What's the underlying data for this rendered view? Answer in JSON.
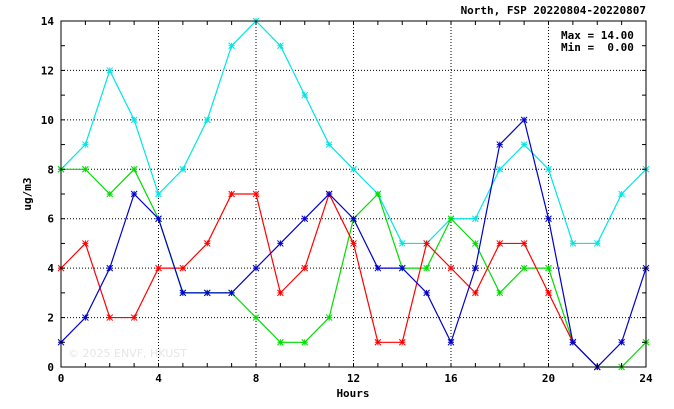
{
  "chart_data": {
    "type": "line",
    "title": "North, FSP 20220804-20220807",
    "xlabel": "Hours",
    "ylabel": "ug/m3",
    "xlim": [
      0,
      24
    ],
    "ylim": [
      0,
      14
    ],
    "x_ticks": [
      0,
      4,
      8,
      12,
      16,
      20,
      24
    ],
    "y_ticks": [
      0,
      2,
      4,
      6,
      8,
      10,
      12,
      14
    ],
    "grid": true,
    "stats": {
      "max_text": "Max = 14.00",
      "min_text": "Min =  0.00"
    },
    "watermark": "© 2025  ENVF, HKUST",
    "x": [
      0,
      1,
      2,
      3,
      4,
      5,
      6,
      7,
      8,
      9,
      10,
      11,
      12,
      13,
      14,
      15,
      16,
      17,
      18,
      19,
      20,
      21,
      22,
      23,
      24
    ],
    "series": [
      {
        "color": "#00e5e5",
        "values": [
          8,
          9,
          12,
          10,
          7,
          8,
          10,
          13,
          14,
          13,
          11,
          9,
          8,
          7,
          5,
          5,
          6,
          6,
          8,
          9,
          8,
          5,
          5,
          7,
          8
        ]
      },
      {
        "color": "#00dd00",
        "values": [
          8,
          8,
          7,
          8,
          6,
          3,
          3,
          3,
          2,
          1,
          1,
          2,
          6,
          7,
          4,
          4,
          6,
          5,
          3,
          4,
          4,
          1,
          0,
          0,
          1
        ]
      },
      {
        "color": "#ff0000",
        "values": [
          4,
          5,
          2,
          2,
          4,
          4,
          5,
          7,
          7,
          3,
          4,
          7,
          5,
          1,
          1,
          5,
          4,
          3,
          5,
          5,
          3,
          1,
          0,
          null,
          null
        ]
      },
      {
        "color": "#0000cc",
        "values": [
          1,
          2,
          4,
          7,
          6,
          3,
          3,
          3,
          4,
          5,
          6,
          7,
          6,
          4,
          4,
          3,
          1,
          4,
          9,
          10,
          6,
          1,
          0,
          1,
          4
        ]
      }
    ]
  }
}
